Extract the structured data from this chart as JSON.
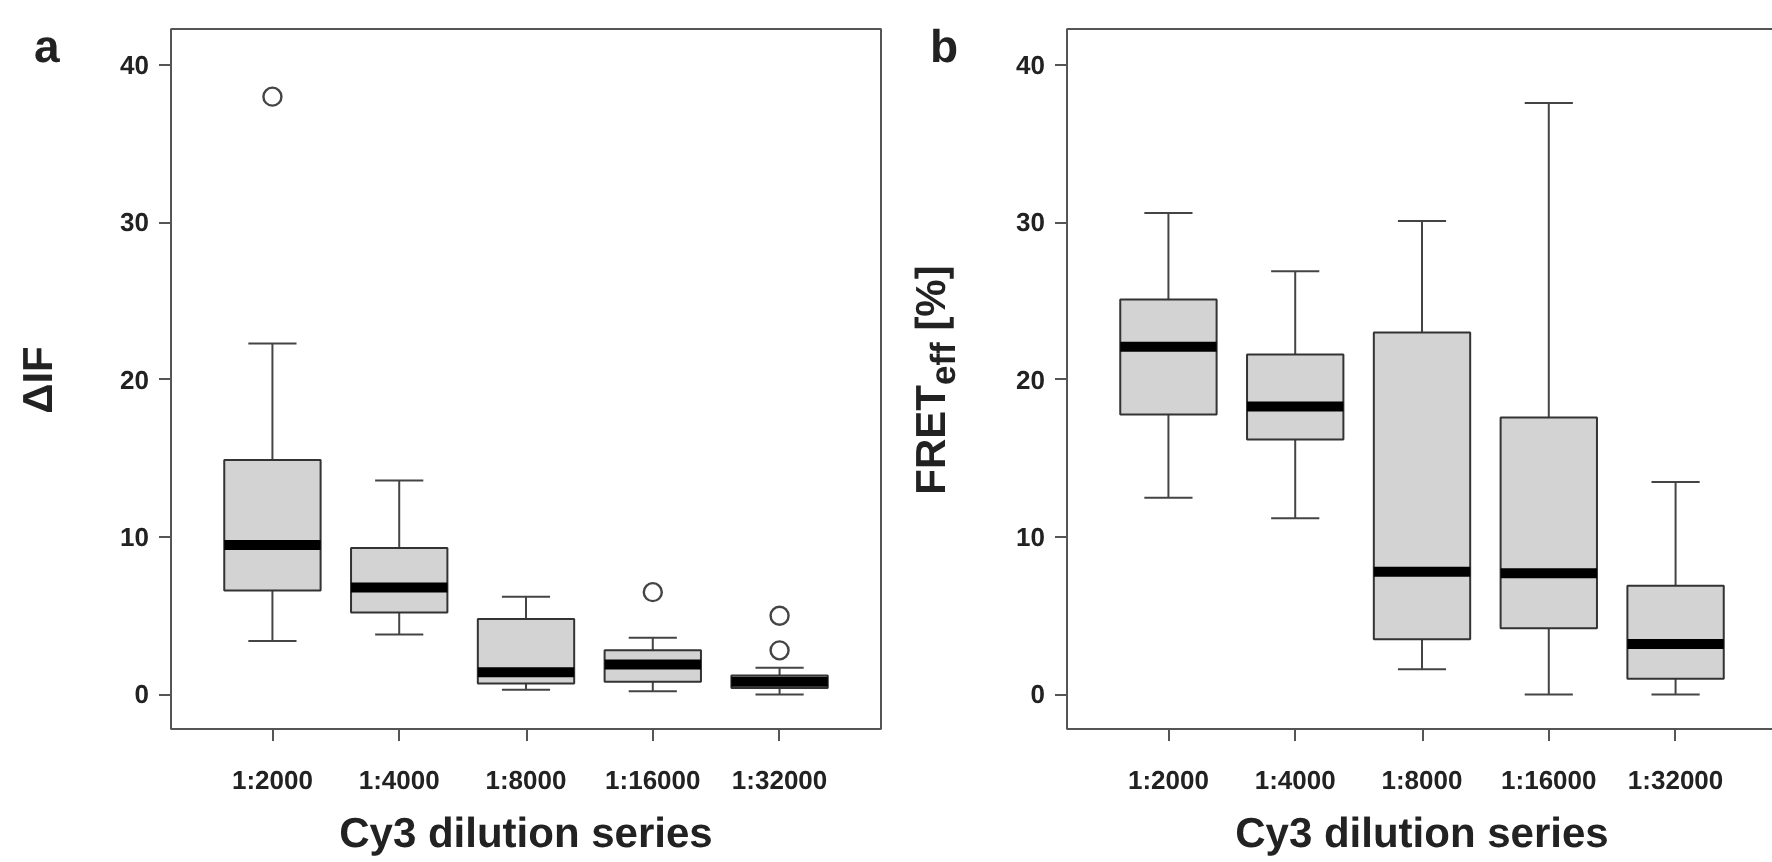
{
  "chart_data": [
    {
      "type": "box",
      "title": "a",
      "xlabel": "Cy3 dilution series",
      "ylabel": "ΔIF",
      "categories": [
        "1:2000",
        "1:4000",
        "1:8000",
        "1:16000",
        "1:32000"
      ],
      "color": "#d3d3d3",
      "ylim": [
        -2.2,
        42.3
      ],
      "yticks": [
        0,
        10,
        20,
        30,
        40
      ],
      "grid": false,
      "boxes": [
        {
          "low": 3.4,
          "q1": 6.6,
          "median": 9.5,
          "q3": 14.9,
          "high": 22.3,
          "outliers": [
            38.0
          ]
        },
        {
          "low": 3.8,
          "q1": 5.2,
          "median": 6.8,
          "q3": 9.3,
          "high": 13.6
        },
        {
          "low": 0.3,
          "q1": 0.7,
          "median": 1.4,
          "q3": 4.8,
          "high": 6.2
        },
        {
          "low": 0.2,
          "q1": 0.8,
          "median": 1.9,
          "q3": 2.8,
          "high": 3.6,
          "outliers": [
            6.5
          ]
        },
        {
          "low": 0,
          "q1": 0.4,
          "median": 0.8,
          "q3": 1.2,
          "high": 1.7,
          "outliers": [
            5.0,
            2.8
          ]
        }
      ]
    },
    {
      "type": "box",
      "title": "b",
      "xlabel": "Cy3 dilution series",
      "ylabel": "FRET$_{eff}$ [%]",
      "categories": [
        "1:2000",
        "1:4000",
        "1:8000",
        "1:16000",
        "1:32000"
      ],
      "color": "#d3d3d3",
      "ylim": [
        -2.2,
        42.3
      ],
      "yticks": [
        0,
        10,
        20,
        30,
        40
      ],
      "grid": false,
      "boxes": [
        {
          "low": 12.5,
          "q1": 17.8,
          "median": 22.1,
          "q3": 25.1,
          "high": 30.6
        },
        {
          "low": 11.2,
          "q1": 16.2,
          "median": 18.3,
          "q3": 21.6,
          "high": 26.9
        },
        {
          "low": 1.6,
          "q1": 3.5,
          "median": 7.8,
          "q3": 23.0,
          "high": 30.1
        },
        {
          "low": 0,
          "q1": 4.2,
          "median": 7.7,
          "q3": 17.6,
          "high": 37.6
        },
        {
          "low": 0,
          "q1": 1.0,
          "median": 3.2,
          "q3": 6.9,
          "high": 13.5
        }
      ]
    }
  ]
}
